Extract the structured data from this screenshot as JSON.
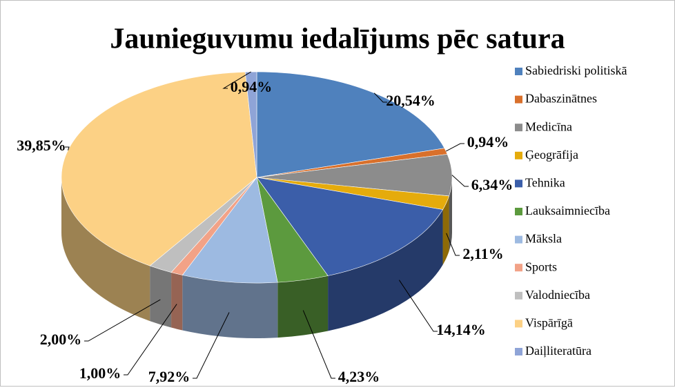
{
  "chart_data": {
    "type": "pie3d",
    "title": "Jaunieguvumu iedalījums pēc satura",
    "categories": [
      "Sabiedriski politiskā",
      "Dabaszinātnes",
      "Medicīna",
      "Ģeogrāfija",
      "Tehnika",
      "Lauksaimniecība",
      "Māksla",
      "Sports",
      "Valodniecība",
      "Vispārīgā",
      "Daiļliteratūra"
    ],
    "values": [
      20.54,
      0.94,
      6.34,
      2.11,
      14.14,
      4.23,
      7.92,
      1.0,
      2.0,
      39.85,
      0.94
    ],
    "value_labels": [
      "20,54%",
      "0,94%",
      "6,34%",
      "2,11%",
      "14,14%",
      "4,23%",
      "7,92%",
      "1,00%",
      "2,00%",
      "39,85%",
      "0,94%"
    ],
    "colors": [
      "#4f81bd",
      "#d9702b",
      "#8c8c8c",
      "#e5ab0c",
      "#3b5ea9",
      "#5c9a3e",
      "#9dbae1",
      "#f2a287",
      "#bfbfbf",
      "#fcd185",
      "#8fa4d7"
    ],
    "legend": "right"
  }
}
